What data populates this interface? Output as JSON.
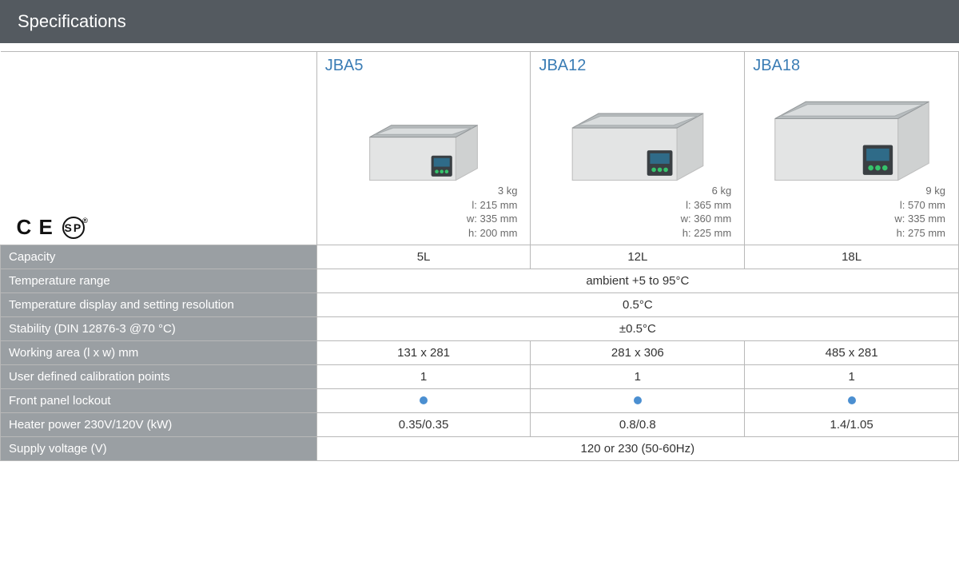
{
  "header": {
    "title": "Specifications"
  },
  "colors": {
    "header_bg": "#545a60",
    "label_bg": "#9a9fa3",
    "model_name": "#3b7db5",
    "dot": "#4b8fd1",
    "border": "#b8b8b8",
    "text": "#333333",
    "dim_text": "#6a6a6a"
  },
  "cert": {
    "ce": "C E",
    "csa": "SP"
  },
  "models": [
    {
      "name": "JBA5",
      "scale": 0.7,
      "weight": "3 kg",
      "length": "l: 215 mm",
      "width": "w: 335 mm",
      "height": "h: 200 mm"
    },
    {
      "name": "JBA12",
      "scale": 0.85,
      "weight": "6 kg",
      "length": "l: 365 mm",
      "width": "w: 360 mm",
      "height": "h:  225 mm"
    },
    {
      "name": "JBA18",
      "scale": 1.0,
      "weight": "9 kg",
      "length": "l: 570 mm",
      "width": "w: 335 mm",
      "height": "h:  275 mm"
    }
  ],
  "rows": [
    {
      "label": "Capacity",
      "values": [
        "5L",
        "12L",
        "18L"
      ],
      "span": false
    },
    {
      "label": "Temperature range",
      "values": [
        "ambient +5 to 95°C"
      ],
      "span": true
    },
    {
      "label": "Temperature display and setting resolution",
      "values": [
        "0.5°C"
      ],
      "span": true
    },
    {
      "label": "Stability (DIN 12876-3 @70 °C)",
      "values": [
        "±0.5°C"
      ],
      "span": true
    },
    {
      "label": "Working area (l x w) mm",
      "values": [
        "131 x 281",
        "281 x 306",
        "485 x 281"
      ],
      "span": false
    },
    {
      "label": "User defined calibration points",
      "values": [
        "1",
        "1",
        "1"
      ],
      "span": false
    },
    {
      "label": "Front panel lockout",
      "values": [
        "•",
        "•",
        "•"
      ],
      "span": false,
      "dot": true
    },
    {
      "label": "Heater power 230V/120V (kW)",
      "values": [
        "0.35/0.35",
        "0.8/0.8",
        "1.4/1.05"
      ],
      "span": false
    },
    {
      "label": "Supply voltage (V)",
      "values": [
        "120 or 230 (50-60Hz)"
      ],
      "span": true
    }
  ]
}
